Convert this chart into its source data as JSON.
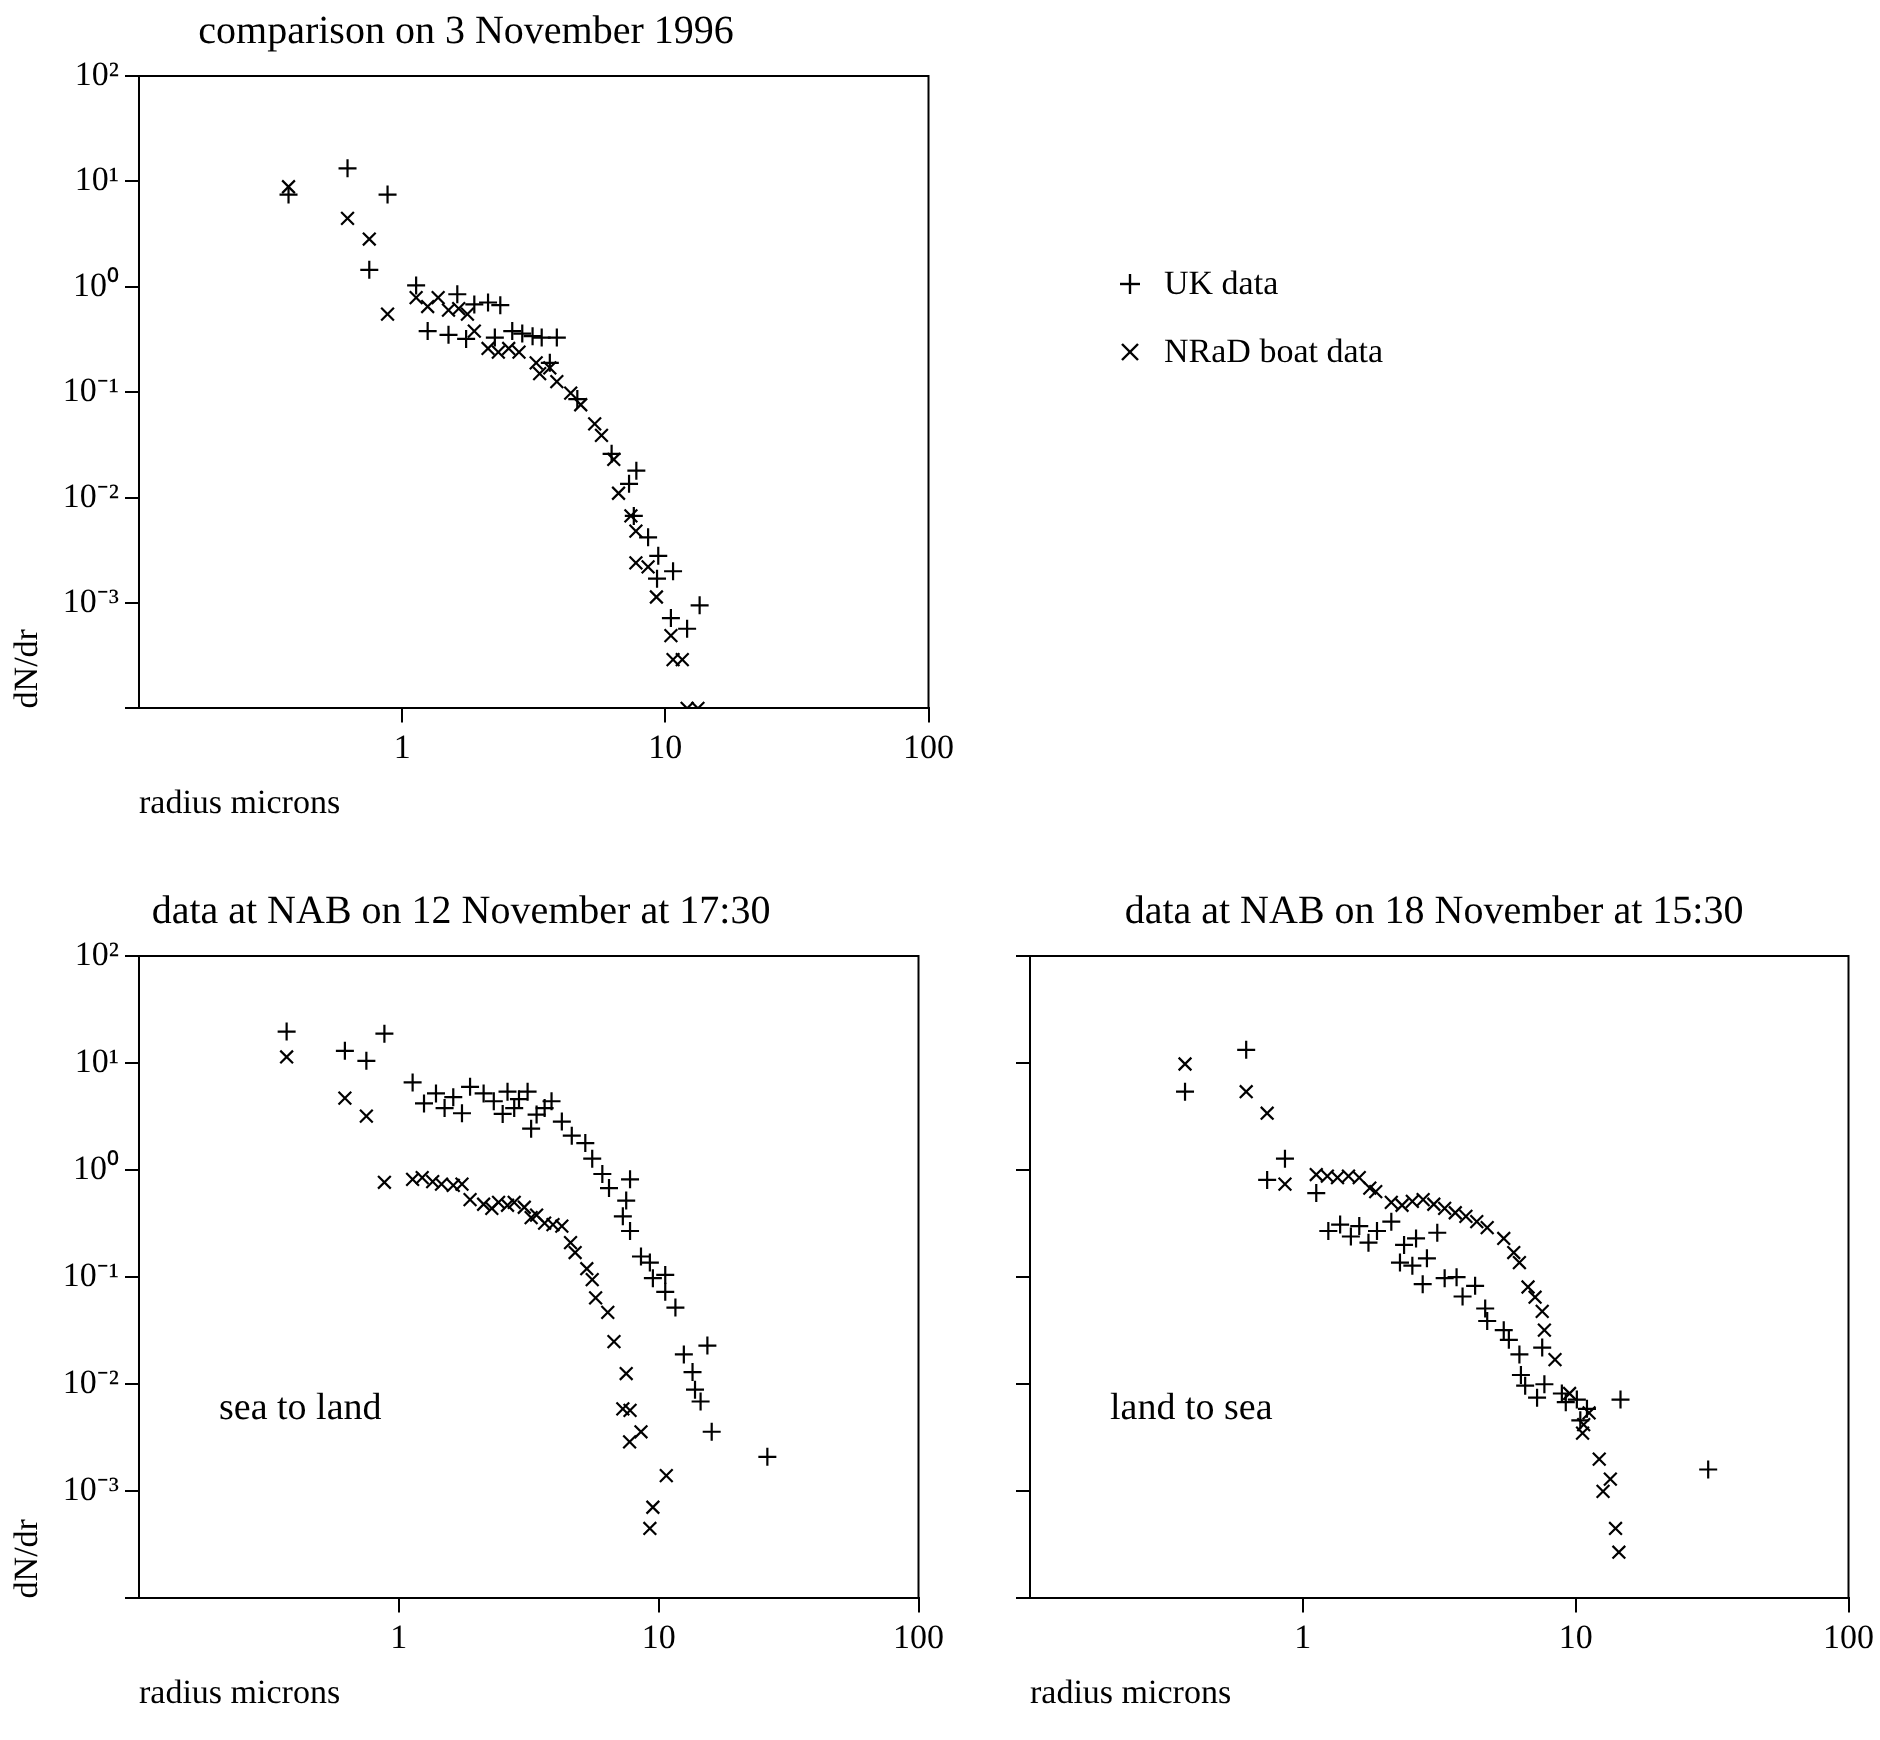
{
  "chart_data": [
    {
      "type": "scatter",
      "title": "comparison on 3 November 1996",
      "xlabel": "radius microns",
      "ylabel": "dN/dr",
      "log": "xy",
      "xlim": [
        0.1,
        100
      ],
      "ylim": [
        0.0001,
        100
      ],
      "xticks": [
        1,
        10,
        100
      ],
      "yticks": [
        {
          "value": 0.0001,
          "label": null
        },
        {
          "value": 0.001,
          "label": "10⁻³"
        },
        {
          "value": 0.01,
          "label": "10⁻²"
        },
        {
          "value": 0.1,
          "label": "10⁻¹"
        },
        {
          "value": 1,
          "label": "10⁰"
        },
        {
          "value": 10,
          "label": "10¹"
        },
        {
          "value": 100,
          "label": "10²"
        }
      ],
      "grid": false,
      "legend": "right",
      "series": [
        {
          "name": "UK data",
          "color": "#000000",
          "marker": "cross",
          "x": [
            0.37,
            0.62,
            0.88,
            0.75,
            1.13,
            1.25,
            1.5,
            1.62,
            1.75,
            1.88,
            2.12,
            2.36,
            2.25,
            2.62,
            2.86,
            3.13,
            3.39,
            3.87,
            3.64,
            4.63,
            6.25,
            7.76,
            7.28,
            7.59,
            8.6,
            9.4,
            10.7,
            10.5,
            12.1,
            13.5,
            9.3
          ],
          "values": [
            7.5,
            13.3,
            7.5,
            1.45,
            1.03,
            0.38,
            0.35,
            0.85,
            0.32,
            0.68,
            0.71,
            0.67,
            0.33,
            0.38,
            0.36,
            0.34,
            0.33,
            0.33,
            0.19,
            0.086,
            0.026,
            0.018,
            0.0135,
            0.0067,
            0.0042,
            0.0028,
            0.002,
            0.00072,
            0.00057,
            0.00095,
            0.0017
          ]
        },
        {
          "name": "NRaD boat data",
          "color": "#000000",
          "marker": "x",
          "x": [
            0.37,
            0.62,
            0.75,
            0.88,
            1.13,
            1.25,
            1.37,
            1.5,
            1.64,
            1.77,
            1.88,
            2.12,
            2.32,
            2.54,
            2.78,
            3.23,
            3.33,
            3.64,
            3.87,
            4.37,
            4.77,
            5.39,
            5.72,
            6.37,
            6.64,
            7.4,
            7.73,
            7.73,
            8.6,
            9.25,
            10.5,
            10.7,
            11.6,
            12.1,
            13.3
          ],
          "values": [
            8.9,
            4.46,
            2.84,
            0.55,
            0.79,
            0.65,
            0.79,
            0.6,
            0.62,
            0.55,
            0.38,
            0.26,
            0.24,
            0.26,
            0.24,
            0.19,
            0.15,
            0.17,
            0.126,
            0.098,
            0.076,
            0.05,
            0.039,
            0.023,
            0.011,
            0.0067,
            0.0048,
            0.0024,
            0.0022,
            0.00114,
            0.00049,
            0.00029,
            0.00029,
            0.0001,
            0.0001
          ]
        }
      ]
    },
    {
      "type": "scatter",
      "title": "data at NAB on 12 November at 17:30",
      "xlabel": "radius microns",
      "ylabel": "dN/dr",
      "log": "xy",
      "xlim": [
        0.1,
        100
      ],
      "ylim": [
        0.0001,
        100
      ],
      "xticks": [
        1,
        10,
        100
      ],
      "yticks": [
        {
          "value": 0.0001,
          "label": null
        },
        {
          "value": 0.001,
          "label": "10⁻³"
        },
        {
          "value": 0.01,
          "label": "10⁻²"
        },
        {
          "value": 0.1,
          "label": "10⁻¹"
        },
        {
          "value": 1,
          "label": "10⁰"
        },
        {
          "value": 10,
          "label": "10¹"
        },
        {
          "value": 100,
          "label": "10²"
        }
      ],
      "grid": false,
      "annotations": [
        "sea to land"
      ],
      "series": [
        {
          "color": "#000000",
          "marker": "cross",
          "x": [
            0.37,
            0.62,
            0.75,
            0.88,
            1.13,
            1.25,
            1.39,
            1.5,
            1.62,
            1.75,
            1.88,
            2.12,
            2.32,
            2.51,
            2.62,
            2.78,
            2.9,
            3.13,
            3.23,
            3.39,
            3.64,
            3.87,
            4.24,
            4.63,
            5.22,
            5.55,
            6.07,
            6.44,
            7.76,
            7.5,
            7.28,
            7.76,
            8.55,
            9.25,
            9.5,
            10.6,
            10.6,
            11.6,
            12.5,
            15.4,
            13.5,
            13.8,
            14.5,
            16,
            26.2
          ],
          "values": [
            19.7,
            13,
            10.5,
            18.8,
            6.6,
            4.2,
            5.2,
            3.8,
            4.8,
            3.4,
            6,
            5.2,
            4.4,
            3.35,
            5.4,
            3.8,
            4.6,
            5.4,
            2.44,
            3.3,
            3.8,
            4.4,
            2.84,
            2.1,
            1.79,
            1.28,
            0.92,
            0.68,
            0.82,
            0.52,
            0.37,
            0.27,
            0.156,
            0.137,
            0.098,
            0.105,
            0.073,
            0.052,
            0.019,
            0.023,
            0.013,
            0.0089,
            0.0069,
            0.0036,
            0.0021
          ]
        },
        {
          "color": "#000000",
          "marker": "x",
          "x": [
            0.37,
            0.62,
            0.75,
            0.88,
            1.13,
            1.23,
            1.35,
            1.46,
            1.62,
            1.75,
            1.88,
            2.12,
            2.28,
            2.42,
            2.62,
            2.78,
            3.04,
            3.23,
            3.39,
            3.64,
            3.92,
            4.24,
            4.58,
            4.77,
            5.29,
            5.55,
            5.72,
            6.37,
            6.73,
            7.5,
            7.28,
            7.76,
            8.55,
            7.73,
            10.7,
            9.5,
            9.25
          ],
          "values": [
            11.4,
            4.7,
            3.2,
            0.77,
            0.82,
            0.85,
            0.78,
            0.74,
            0.72,
            0.74,
            0.53,
            0.48,
            0.44,
            0.5,
            0.47,
            0.5,
            0.45,
            0.36,
            0.38,
            0.32,
            0.31,
            0.3,
            0.21,
            0.17,
            0.12,
            0.095,
            0.064,
            0.047,
            0.025,
            0.0126,
            0.0059,
            0.0057,
            0.0036,
            0.0029,
            0.0014,
            0.00071,
            0.00045
          ]
        }
      ]
    },
    {
      "type": "scatter",
      "title": "data at NAB on 18 November at 15:30",
      "xlabel": "radius microns",
      "log": "xy",
      "xlim": [
        0.1,
        100
      ],
      "ylim": [
        0.0001,
        100
      ],
      "xticks": [
        1,
        10,
        100
      ],
      "yticks": [
        0.0001,
        0.001,
        0.01,
        0.1,
        1,
        10,
        100
      ],
      "grid": false,
      "tick_labels": "x",
      "annotations": [
        "land to sea"
      ],
      "series": [
        {
          "color": "#000000",
          "marker": "cross",
          "x": [
            0.62,
            0.37,
            0.86,
            0.74,
            1.12,
            1.24,
            1.37,
            1.5,
            1.61,
            1.74,
            1.87,
            2.11,
            2.35,
            2.6,
            3.11,
            2.27,
            2.52,
            2.85,
            2.75,
            3.31,
            3.66,
            3.85,
            4.28,
            4.66,
            4.74,
            5.45,
            5.69,
            6.22,
            6.3,
            7.54,
            6.53,
            7.22,
            7.68,
            8.9,
            9.2,
            10.1,
            11,
            10.4,
            14.6,
            30.6
          ],
          "values": [
            13.3,
            5.4,
            1.28,
            0.81,
            0.61,
            0.27,
            0.31,
            0.24,
            0.3,
            0.21,
            0.27,
            0.33,
            0.2,
            0.23,
            0.26,
            0.137,
            0.128,
            0.15,
            0.086,
            0.098,
            0.1,
            0.066,
            0.083,
            0.051,
            0.039,
            0.032,
            0.026,
            0.019,
            0.0122,
            0.022,
            0.0097,
            0.0075,
            0.01,
            0.0082,
            0.0068,
            0.0072,
            0.0059,
            0.0046,
            0.0072,
            0.0016
          ]
        },
        {
          "color": "#000000",
          "marker": "x",
          "x": [
            0.37,
            0.62,
            0.74,
            0.86,
            1.12,
            1.23,
            1.34,
            1.47,
            1.61,
            1.76,
            1.85,
            2.11,
            2.31,
            2.52,
            2.76,
            3.02,
            3.31,
            3.62,
            3.96,
            4.34,
            4.74,
            5.45,
            5.93,
            6.22,
            6.69,
            7.1,
            7.54,
            7.68,
            8.4,
            9.5,
            11.2,
            10.7,
            10.6,
            12.2,
            13.4,
            12.6,
            14,
            14.4
          ],
          "values": [
            9.8,
            5.4,
            3.4,
            0.74,
            0.91,
            0.88,
            0.85,
            0.88,
            0.85,
            0.68,
            0.63,
            0.5,
            0.47,
            0.51,
            0.53,
            0.48,
            0.44,
            0.4,
            0.37,
            0.33,
            0.29,
            0.23,
            0.17,
            0.137,
            0.081,
            0.065,
            0.048,
            0.032,
            0.017,
            0.0082,
            0.0054,
            0.0042,
            0.0035,
            0.002,
            0.0013,
            0.001,
            0.00045,
            0.00027
          ]
        }
      ]
    }
  ]
}
